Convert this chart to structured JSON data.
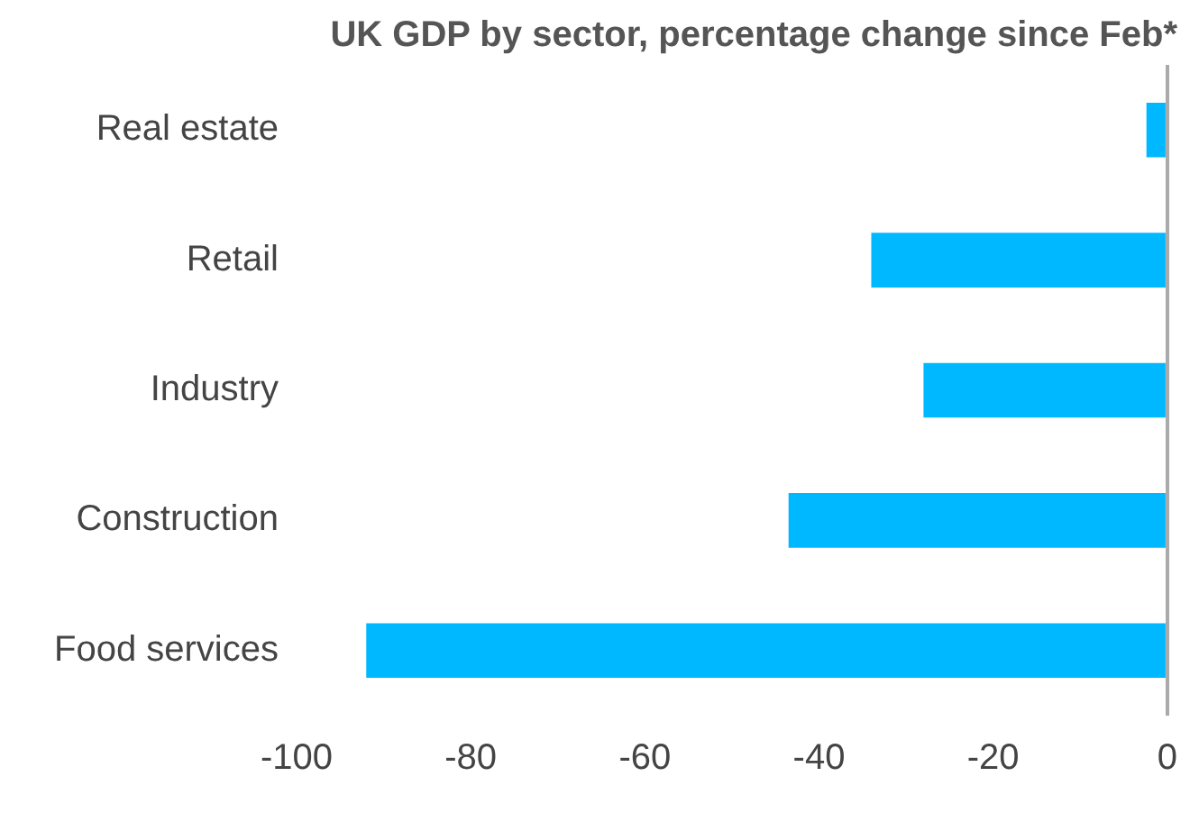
{
  "chart_data": {
    "type": "bar",
    "orientation": "horizontal",
    "title": "UK GDP by sector, percentage change since Feb*",
    "categories": [
      "Real estate",
      "Retail",
      "Industry",
      "Construction",
      "Food services"
    ],
    "values": [
      -2.4,
      -34,
      -28,
      -43.5,
      -92
    ],
    "color": "#00b8ff",
    "xlim": [
      -100,
      0
    ],
    "xticks": [
      -100,
      -80,
      -60,
      -40,
      -20,
      0
    ],
    "grid": false,
    "legend": false
  }
}
